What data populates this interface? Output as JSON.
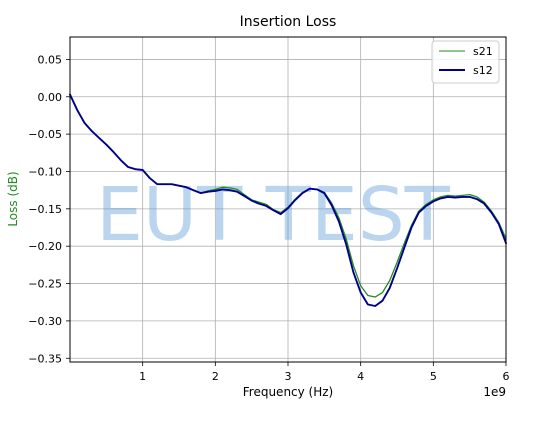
{
  "chart_data": {
    "type": "line",
    "title": "Insertion Loss",
    "xlabel": "Frequency (Hz)",
    "ylabel": "Loss (dB)",
    "x_offset_label": "1e9",
    "x_scale": 1000000000,
    "xlim": [
      0,
      6
    ],
    "ylim": [
      -0.355,
      0.08
    ],
    "x_ticks": [
      1,
      2,
      3,
      4,
      5,
      6
    ],
    "x_tick_labels": [
      "1",
      "2",
      "3",
      "4",
      "5",
      "6"
    ],
    "y_ticks": [
      0.05,
      0.0,
      -0.05,
      -0.1,
      -0.15,
      -0.2,
      -0.25,
      -0.3,
      -0.35
    ],
    "y_tick_labels": [
      "0.05",
      "0.00",
      "−0.05",
      "−0.10",
      "−0.15",
      "−0.20",
      "−0.25",
      "−0.30",
      "−0.35"
    ],
    "grid": true,
    "legend_position": "top-right",
    "watermark": "EUT TEST",
    "colors": {
      "s21": "#228B22",
      "s12": "#00008B",
      "ylabel": "#228B22",
      "watermark": "#5B9BD5"
    },
    "series": [
      {
        "name": "s21",
        "x": [
          0,
          0.1,
          0.2,
          0.3,
          0.4,
          0.5,
          0.6,
          0.7,
          0.8,
          0.9,
          1.0,
          1.1,
          1.2,
          1.3,
          1.4,
          1.5,
          1.6,
          1.7,
          1.8,
          1.9,
          2.0,
          2.1,
          2.2,
          2.3,
          2.4,
          2.5,
          2.6,
          2.7,
          2.8,
          2.9,
          3.0,
          3.1,
          3.2,
          3.3,
          3.4,
          3.5,
          3.6,
          3.7,
          3.8,
          3.9,
          4.0,
          4.1,
          4.2,
          4.3,
          4.4,
          4.5,
          4.6,
          4.7,
          4.8,
          4.9,
          5.0,
          5.1,
          5.2,
          5.3,
          5.4,
          5.5,
          5.6,
          5.7,
          5.8,
          5.9,
          6.0
        ],
        "values": [
          0.003,
          -0.018,
          -0.035,
          -0.046,
          -0.055,
          -0.064,
          -0.074,
          -0.085,
          -0.094,
          -0.097,
          -0.098,
          -0.109,
          -0.117,
          -0.117,
          -0.117,
          -0.119,
          -0.121,
          -0.125,
          -0.129,
          -0.126,
          -0.124,
          -0.121,
          -0.122,
          -0.124,
          -0.131,
          -0.138,
          -0.141,
          -0.144,
          -0.151,
          -0.155,
          -0.148,
          -0.137,
          -0.128,
          -0.123,
          -0.124,
          -0.128,
          -0.142,
          -0.162,
          -0.19,
          -0.226,
          -0.253,
          -0.266,
          -0.268,
          -0.262,
          -0.246,
          -0.222,
          -0.196,
          -0.172,
          -0.153,
          -0.144,
          -0.138,
          -0.134,
          -0.132,
          -0.133,
          -0.132,
          -0.131,
          -0.134,
          -0.141,
          -0.153,
          -0.168,
          -0.19
        ]
      },
      {
        "name": "s12",
        "x": [
          0,
          0.1,
          0.2,
          0.3,
          0.4,
          0.5,
          0.6,
          0.7,
          0.8,
          0.9,
          1.0,
          1.1,
          1.2,
          1.3,
          1.4,
          1.5,
          1.6,
          1.7,
          1.8,
          1.9,
          2.0,
          2.1,
          2.2,
          2.3,
          2.4,
          2.5,
          2.6,
          2.7,
          2.8,
          2.9,
          3.0,
          3.1,
          3.2,
          3.3,
          3.4,
          3.5,
          3.6,
          3.7,
          3.8,
          3.9,
          4.0,
          4.1,
          4.2,
          4.3,
          4.4,
          4.5,
          4.6,
          4.7,
          4.8,
          4.9,
          5.0,
          5.1,
          5.2,
          5.3,
          5.4,
          5.5,
          5.6,
          5.7,
          5.8,
          5.9,
          6.0
        ],
        "values": [
          0.003,
          -0.018,
          -0.035,
          -0.046,
          -0.055,
          -0.064,
          -0.074,
          -0.085,
          -0.094,
          -0.097,
          -0.098,
          -0.109,
          -0.117,
          -0.117,
          -0.117,
          -0.119,
          -0.121,
          -0.125,
          -0.129,
          -0.127,
          -0.126,
          -0.124,
          -0.125,
          -0.127,
          -0.133,
          -0.139,
          -0.143,
          -0.146,
          -0.152,
          -0.157,
          -0.149,
          -0.138,
          -0.129,
          -0.123,
          -0.124,
          -0.129,
          -0.145,
          -0.167,
          -0.197,
          -0.235,
          -0.262,
          -0.278,
          -0.28,
          -0.273,
          -0.256,
          -0.23,
          -0.202,
          -0.175,
          -0.155,
          -0.146,
          -0.14,
          -0.136,
          -0.134,
          -0.135,
          -0.134,
          -0.134,
          -0.137,
          -0.143,
          -0.155,
          -0.17,
          -0.196
        ]
      }
    ]
  }
}
